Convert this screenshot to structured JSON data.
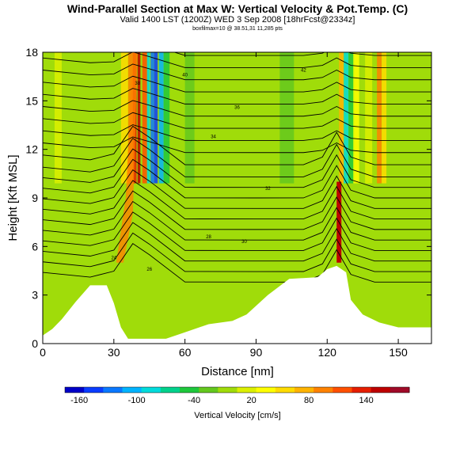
{
  "header": {
    "title": "Wind-Parallel Section at Max W: Vertical Velocity & Pot.Temp. (C)",
    "subtitle": "Valid 1400 LST (1200Z) WED 3 Sep 2008 [18hrFcst@2334z]",
    "info": "boxfilmax=10 @ 38.51,31 11,285 pts"
  },
  "chart_data": {
    "type": "heatmap",
    "xlabel": "Distance [nm]",
    "ylabel": "Height [Kft MSL]",
    "xlim": [
      0,
      164
    ],
    "ylim": [
      0,
      18
    ],
    "xticks": [
      0,
      30,
      60,
      90,
      120,
      150
    ],
    "yticks": [
      0,
      3,
      6,
      9,
      12,
      15,
      18
    ],
    "colorbar": {
      "label": "Vertical Velocity [cm/s]",
      "ticks": [
        -160,
        -100,
        -40,
        20,
        80,
        140
      ],
      "colors": [
        "#0000c8",
        "#0a3cff",
        "#0a78ff",
        "#00b4ff",
        "#00dcdc",
        "#00d28c",
        "#1ec83c",
        "#64c81e",
        "#a0dc0a",
        "#dcf000",
        "#ffff00",
        "#ffdc00",
        "#ffb400",
        "#ff8200",
        "#ff5000",
        "#e61e00",
        "#be0000",
        "#a00a28"
      ]
    },
    "terrain_nm_kft": [
      [
        0,
        0.5
      ],
      [
        4,
        0.9
      ],
      [
        8,
        1.5
      ],
      [
        14,
        2.6
      ],
      [
        20,
        3.6
      ],
      [
        27,
        3.6
      ],
      [
        30,
        2.5
      ],
      [
        33,
        1.0
      ],
      [
        36,
        0.3
      ],
      [
        52,
        0.3
      ],
      [
        60,
        0.7
      ],
      [
        70,
        1.2
      ],
      [
        80,
        1.4
      ],
      [
        86,
        1.8
      ],
      [
        95,
        3.0
      ],
      [
        104,
        4.0
      ],
      [
        116,
        4.1
      ],
      [
        120,
        4.6
      ],
      [
        124,
        4.8
      ],
      [
        128,
        4.4
      ],
      [
        130,
        2.7
      ],
      [
        135,
        1.8
      ],
      [
        142,
        1.3
      ],
      [
        150,
        1.0
      ],
      [
        164,
        1.0
      ]
    ],
    "theta_contour_labels": [
      "24",
      "26",
      "28",
      "30",
      "32",
      "34",
      "36",
      "38",
      "40",
      "42"
    ]
  },
  "colors": {
    "background": "#a0dc0a",
    "contour": "#000000"
  }
}
